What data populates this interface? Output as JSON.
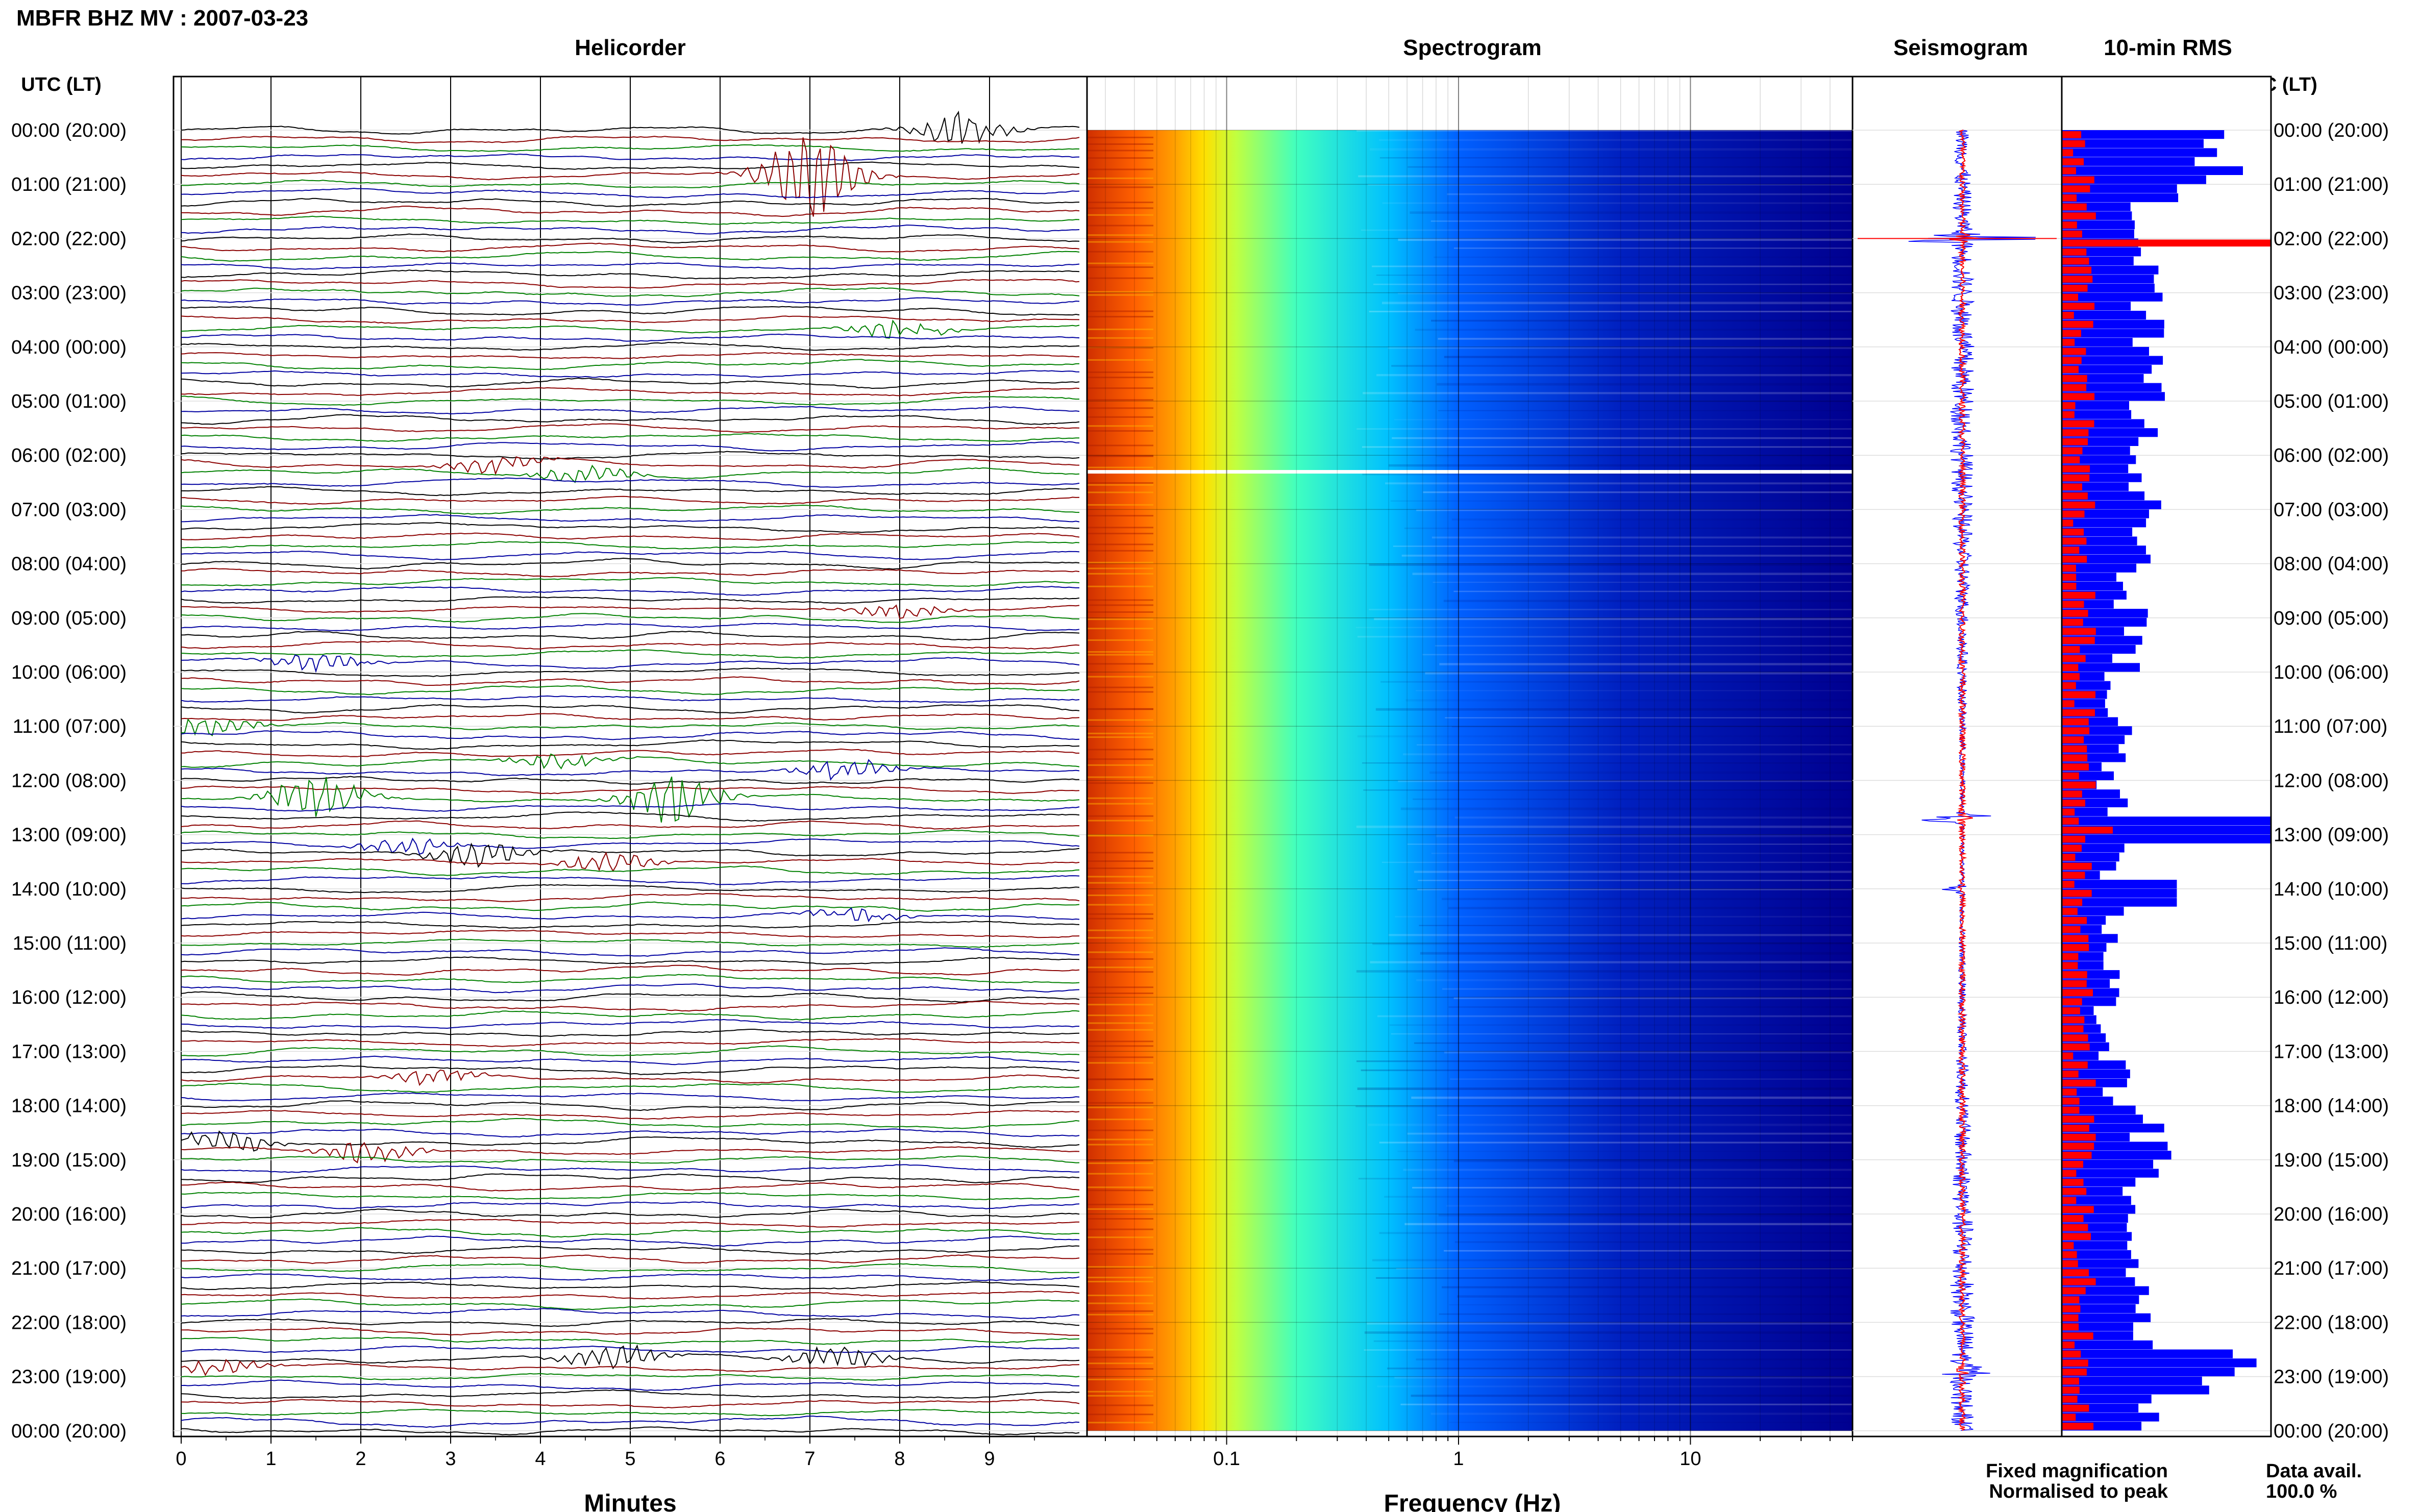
{
  "title": "MBFR BHZ MV : 2007-03-23",
  "panels": {
    "helicorder": "Helicorder",
    "spectrogram": "Spectrogram",
    "seismogram": "Seismogram",
    "rms": "10-min RMS"
  },
  "time_axis_header": "UTC (LT)",
  "time_labels": [
    "00:00 (20:00)",
    "01:00 (21:00)",
    "02:00 (22:00)",
    "03:00 (23:00)",
    "04:00 (00:00)",
    "05:00 (01:00)",
    "06:00 (02:00)",
    "07:00 (03:00)",
    "08:00 (04:00)",
    "09:00 (05:00)",
    "10:00 (06:00)",
    "11:00 (07:00)",
    "12:00 (08:00)",
    "13:00 (09:00)",
    "14:00 (10:00)",
    "15:00 (11:00)",
    "16:00 (12:00)",
    "17:00 (13:00)",
    "18:00 (14:00)",
    "19:00 (15:00)",
    "20:00 (16:00)",
    "21:00 (17:00)",
    "22:00 (18:00)",
    "23:00 (19:00)",
    "00:00 (20:00)"
  ],
  "legend": {
    "fixed": "Fixed magnification",
    "normalised": "Normalised to peak",
    "fixed_color": "#0000ff",
    "normalised_color": "#ff0000"
  },
  "data_avail": {
    "label": "Data avail.",
    "value": "100.0 %"
  },
  "colors": {
    "trace_cycle": [
      "#000000",
      "#8b0000",
      "#008000",
      "#0000a0"
    ],
    "rms_fixed": "#0000ff",
    "rms_norm": "#ff0000"
  },
  "chart_data": [
    {
      "type": "line",
      "panel": "helicorder",
      "xlabel": "Minutes",
      "x_ticks": [
        0,
        1,
        2,
        3,
        4,
        5,
        6,
        7,
        8,
        9
      ],
      "xlim": [
        0,
        10
      ],
      "rows_per_hour": 6,
      "row_minutes": 10,
      "events": [
        {
          "row": 0,
          "minute": 8.7,
          "amp": 0.9,
          "color": "#000000"
        },
        {
          "row": 5,
          "minute": 7.0,
          "amp": 2.2,
          "color": "#008000"
        },
        {
          "row": 22,
          "minute": 8.0,
          "amp": 0.5,
          "color": "#008000"
        },
        {
          "row": 37,
          "minute": 3.5,
          "amp": 0.5,
          "color": "#8b0000"
        },
        {
          "row": 38,
          "minute": 4.5,
          "amp": 0.5,
          "color": "#0000a0"
        },
        {
          "row": 53,
          "minute": 8.0,
          "amp": 0.4,
          "color": "#000000"
        },
        {
          "row": 59,
          "minute": 1.5,
          "amp": 0.5,
          "color": "#008000"
        },
        {
          "row": 66,
          "minute": 0.3,
          "amp": 0.5,
          "color": "#0000a0"
        },
        {
          "row": 70,
          "minute": 4.2,
          "amp": 0.4,
          "color": "#0000a0"
        },
        {
          "row": 71,
          "minute": 7.4,
          "amp": 0.6,
          "color": "#8b0000"
        },
        {
          "row": 74,
          "minute": 1.5,
          "amp": 1.2,
          "color": "#000000"
        },
        {
          "row": 74,
          "minute": 5.5,
          "amp": 1.3,
          "color": "#000000"
        },
        {
          "row": 79,
          "minute": 2.5,
          "amp": 0.5,
          "color": "#8b0000"
        },
        {
          "row": 80,
          "minute": 3.3,
          "amp": 0.7,
          "color": "#000000"
        },
        {
          "row": 81,
          "minute": 4.8,
          "amp": 0.5,
          "color": "#0000a0"
        },
        {
          "row": 87,
          "minute": 7.5,
          "amp": 0.4,
          "color": "#000000"
        },
        {
          "row": 105,
          "minute": 2.8,
          "amp": 0.4,
          "color": "#8b0000"
        },
        {
          "row": 112,
          "minute": 0.5,
          "amp": 0.5,
          "color": "#000000"
        },
        {
          "row": 113,
          "minute": 2.1,
          "amp": 0.6,
          "color": "#0000a0"
        },
        {
          "row": 136,
          "minute": 4.8,
          "amp": 0.7,
          "color": "#000000"
        },
        {
          "row": 136,
          "minute": 7.3,
          "amp": 0.6,
          "color": "#000000"
        },
        {
          "row": 137,
          "minute": 0.4,
          "amp": 0.5,
          "color": "#8b0000"
        }
      ]
    },
    {
      "type": "heatmap",
      "panel": "spectrogram",
      "xlabel": "Frequency (Hz)",
      "x_scale": "log",
      "xlim": [
        0.025,
        50
      ],
      "x_tick_labels": [
        "0.1",
        "1",
        "10"
      ],
      "x_tick_values": [
        0.1,
        1,
        10
      ],
      "colormap": [
        "#d03000",
        "#ff6000",
        "#ffa000",
        "#ffe000",
        "#c0ff40",
        "#40ffc0",
        "#00c0ff",
        "#0060ff",
        "#0020c0",
        "#000090"
      ],
      "gap_hour": 6.3
    },
    {
      "type": "line",
      "panel": "seismogram",
      "series": [
        {
          "name": "Fixed magnification",
          "color": "#0000ff"
        },
        {
          "name": "Normalised to peak",
          "color": "#ff0000"
        }
      ],
      "spikes": [
        {
          "hour": 2.0,
          "amp": 1.0
        },
        {
          "hour": 12.7,
          "amp": 0.8
        },
        {
          "hour": 14.0,
          "amp": 0.2
        },
        {
          "hour": 22.9,
          "amp": 0.4
        }
      ]
    },
    {
      "type": "bar",
      "panel": "rms",
      "orientation": "horizontal",
      "series": [
        {
          "name": "Fixed magnification",
          "color": "#0000ff"
        },
        {
          "name": "Normalised to peak",
          "color": "#ff0000"
        }
      ],
      "norm_hours": [
        2.0,
        12.8
      ],
      "norm_full_row_hour": 2.0
    }
  ]
}
